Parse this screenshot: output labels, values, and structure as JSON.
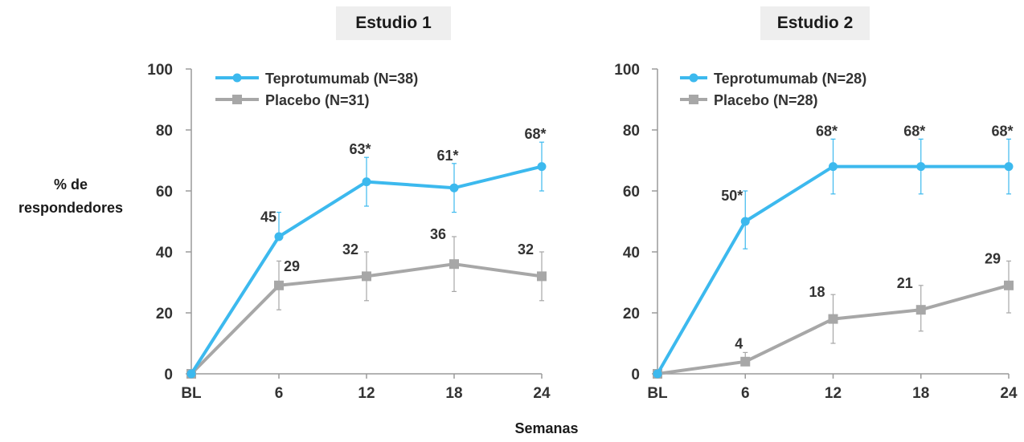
{
  "ylabel_line1": "% de",
  "ylabel_line2": "respondedores",
  "xlabel": "Semanas",
  "colors": {
    "teprotumumab": "#3cb9ee",
    "placebo": "#a7a7a7",
    "axis": "#9a9a9a",
    "text": "#1a1a1a"
  },
  "chart_data": [
    {
      "type": "line",
      "title": "Estudio 1",
      "categories": [
        "BL",
        "6",
        "12",
        "18",
        "24"
      ],
      "ylim": [
        0,
        100
      ],
      "yticks": [
        0,
        20,
        40,
        60,
        80,
        100
      ],
      "legend_position": "top-left",
      "series": [
        {
          "name": "Teprotumumab (N=38)",
          "color_key": "teprotumumab",
          "marker": "circle",
          "values": [
            0,
            45,
            63,
            61,
            68
          ],
          "error_upper": [
            null,
            53,
            71,
            69,
            76
          ],
          "error_lower": [
            null,
            null,
            55,
            53,
            60
          ],
          "labels": [
            "",
            "45",
            "63*",
            "61*",
            "68*"
          ]
        },
        {
          "name": "Placebo (N=31)",
          "color_key": "placebo",
          "marker": "square",
          "values": [
            0,
            29,
            32,
            36,
            32
          ],
          "error_upper": [
            null,
            37,
            40,
            45,
            40
          ],
          "error_lower": [
            null,
            21,
            24,
            27,
            24
          ],
          "labels": [
            "",
            "29",
            "32",
            "36",
            "32"
          ]
        }
      ]
    },
    {
      "type": "line",
      "title": "Estudio 2",
      "categories": [
        "BL",
        "6",
        "12",
        "18",
        "24"
      ],
      "ylim": [
        0,
        100
      ],
      "yticks": [
        0,
        20,
        40,
        60,
        80,
        100
      ],
      "legend_position": "top-left",
      "series": [
        {
          "name": "Teprotumumab (N=28)",
          "color_key": "teprotumumab",
          "marker": "circle",
          "values": [
            0,
            50,
            68,
            68,
            68
          ],
          "error_upper": [
            null,
            60,
            77,
            77,
            77
          ],
          "error_lower": [
            null,
            41,
            59,
            59,
            59
          ],
          "labels": [
            "",
            "50*",
            "68*",
            "68*",
            "68*"
          ]
        },
        {
          "name": "Placebo (N=28)",
          "color_key": "placebo",
          "marker": "square",
          "values": [
            0,
            4,
            18,
            21,
            29
          ],
          "error_upper": [
            null,
            7,
            26,
            29,
            37
          ],
          "error_lower": [
            null,
            null,
            10,
            14,
            20
          ],
          "labels": [
            "",
            "4",
            "18",
            "21",
            "29"
          ]
        }
      ]
    }
  ]
}
